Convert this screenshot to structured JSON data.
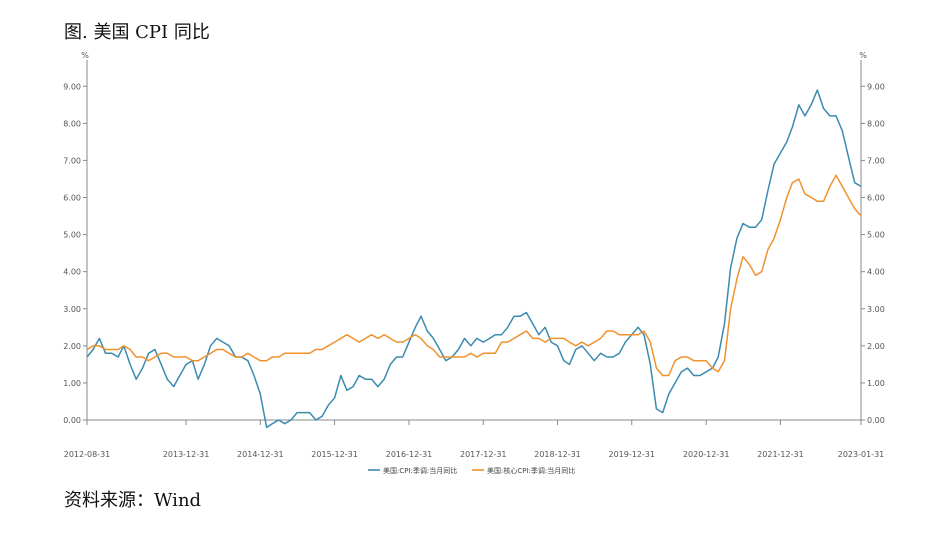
{
  "figure": {
    "title": "图. 美国 CPI 同比",
    "source": "资料来源：Wind"
  },
  "chart_data": {
    "type": "line",
    "title": "图. 美国 CPI 同比",
    "unit_left": "%",
    "unit_right": "%",
    "ylim": [
      0,
      9.6
    ],
    "yticks": [
      "0.00",
      "1.00",
      "2.00",
      "3.00",
      "4.00",
      "5.00",
      "6.00",
      "7.00",
      "8.00",
      "9.00"
    ],
    "ytick_values": [
      0,
      1,
      2,
      3,
      4,
      5,
      6,
      7,
      8,
      9
    ],
    "xlim": [
      "2012-08-31",
      "2023-01-31"
    ],
    "xticks": [
      "2012-08-31",
      "2013-12-31",
      "2014-12-31",
      "2015-12-31",
      "2016-12-31",
      "2017-12-31",
      "2018-12-31",
      "2019-12-31",
      "2020-12-31",
      "2021-12-31",
      "2023-01-31"
    ],
    "grid": false,
    "legend_position": "bottom",
    "series": [
      {
        "name": "美国:CPI:季调:当月同比",
        "color": "#3a8bb0",
        "points": [
          [
            "2012-08-31",
            1.7
          ],
          [
            "2012-09-30",
            1.9
          ],
          [
            "2012-10-31",
            2.2
          ],
          [
            "2012-11-30",
            1.8
          ],
          [
            "2012-12-31",
            1.8
          ],
          [
            "2013-01-31",
            1.7
          ],
          [
            "2013-02-28",
            2.0
          ],
          [
            "2013-03-31",
            1.5
          ],
          [
            "2013-04-30",
            1.1
          ],
          [
            "2013-05-31",
            1.4
          ],
          [
            "2013-06-30",
            1.8
          ],
          [
            "2013-07-31",
            1.9
          ],
          [
            "2013-08-31",
            1.5
          ],
          [
            "2013-09-30",
            1.1
          ],
          [
            "2013-10-31",
            0.9
          ],
          [
            "2013-11-30",
            1.2
          ],
          [
            "2013-12-31",
            1.5
          ],
          [
            "2014-01-31",
            1.6
          ],
          [
            "2014-02-28",
            1.1
          ],
          [
            "2014-03-31",
            1.5
          ],
          [
            "2014-04-30",
            2.0
          ],
          [
            "2014-05-31",
            2.2
          ],
          [
            "2014-06-30",
            2.1
          ],
          [
            "2014-07-31",
            2.0
          ],
          [
            "2014-08-31",
            1.7
          ],
          [
            "2014-09-30",
            1.7
          ],
          [
            "2014-10-31",
            1.6
          ],
          [
            "2014-11-30",
            1.2
          ],
          [
            "2014-12-31",
            0.7
          ],
          [
            "2015-01-31",
            -0.2
          ],
          [
            "2015-02-28",
            -0.1
          ],
          [
            "2015-03-31",
            0.0
          ],
          [
            "2015-04-30",
            -0.1
          ],
          [
            "2015-05-31",
            0.0
          ],
          [
            "2015-06-30",
            0.2
          ],
          [
            "2015-07-31",
            0.2
          ],
          [
            "2015-08-31",
            0.2
          ],
          [
            "2015-09-30",
            0.0
          ],
          [
            "2015-10-31",
            0.1
          ],
          [
            "2015-11-30",
            0.4
          ],
          [
            "2015-12-31",
            0.6
          ],
          [
            "2016-01-31",
            1.2
          ],
          [
            "2016-02-29",
            0.8
          ],
          [
            "2016-03-31",
            0.9
          ],
          [
            "2016-04-30",
            1.2
          ],
          [
            "2016-05-31",
            1.1
          ],
          [
            "2016-06-30",
            1.1
          ],
          [
            "2016-07-31",
            0.9
          ],
          [
            "2016-08-31",
            1.1
          ],
          [
            "2016-09-30",
            1.5
          ],
          [
            "2016-10-31",
            1.7
          ],
          [
            "2016-11-30",
            1.7
          ],
          [
            "2016-12-31",
            2.1
          ],
          [
            "2017-01-31",
            2.5
          ],
          [
            "2017-02-28",
            2.8
          ],
          [
            "2017-03-31",
            2.4
          ],
          [
            "2017-04-30",
            2.2
          ],
          [
            "2017-05-31",
            1.9
          ],
          [
            "2017-06-30",
            1.6
          ],
          [
            "2017-07-31",
            1.7
          ],
          [
            "2017-08-31",
            1.9
          ],
          [
            "2017-09-30",
            2.2
          ],
          [
            "2017-10-31",
            2.0
          ],
          [
            "2017-11-30",
            2.2
          ],
          [
            "2017-12-31",
            2.1
          ],
          [
            "2018-01-31",
            2.2
          ],
          [
            "2018-02-28",
            2.3
          ],
          [
            "2018-03-31",
            2.3
          ],
          [
            "2018-04-30",
            2.5
          ],
          [
            "2018-05-31",
            2.8
          ],
          [
            "2018-06-30",
            2.8
          ],
          [
            "2018-07-31",
            2.9
          ],
          [
            "2018-08-31",
            2.6
          ],
          [
            "2018-09-30",
            2.3
          ],
          [
            "2018-10-31",
            2.5
          ],
          [
            "2018-11-30",
            2.1
          ],
          [
            "2018-12-31",
            2.0
          ],
          [
            "2019-01-31",
            1.6
          ],
          [
            "2019-02-28",
            1.5
          ],
          [
            "2019-03-31",
            1.9
          ],
          [
            "2019-04-30",
            2.0
          ],
          [
            "2019-05-31",
            1.8
          ],
          [
            "2019-06-30",
            1.6
          ],
          [
            "2019-07-31",
            1.8
          ],
          [
            "2019-08-31",
            1.7
          ],
          [
            "2019-09-30",
            1.7
          ],
          [
            "2019-10-31",
            1.8
          ],
          [
            "2019-11-30",
            2.1
          ],
          [
            "2019-12-31",
            2.3
          ],
          [
            "2020-01-31",
            2.5
          ],
          [
            "2020-02-29",
            2.3
          ],
          [
            "2020-03-31",
            1.5
          ],
          [
            "2020-04-30",
            0.3
          ],
          [
            "2020-05-31",
            0.2
          ],
          [
            "2020-06-30",
            0.7
          ],
          [
            "2020-07-31",
            1.0
          ],
          [
            "2020-08-31",
            1.3
          ],
          [
            "2020-09-30",
            1.4
          ],
          [
            "2020-10-31",
            1.2
          ],
          [
            "2020-11-30",
            1.2
          ],
          [
            "2020-12-31",
            1.3
          ],
          [
            "2021-01-31",
            1.4
          ],
          [
            "2021-02-28",
            1.7
          ],
          [
            "2021-03-31",
            2.6
          ],
          [
            "2021-04-30",
            4.1
          ],
          [
            "2021-05-31",
            4.9
          ],
          [
            "2021-06-30",
            5.3
          ],
          [
            "2021-07-31",
            5.2
          ],
          [
            "2021-08-31",
            5.2
          ],
          [
            "2021-09-30",
            5.4
          ],
          [
            "2021-10-31",
            6.2
          ],
          [
            "2021-11-30",
            6.9
          ],
          [
            "2021-12-31",
            7.2
          ],
          [
            "2022-01-31",
            7.5
          ],
          [
            "2022-02-28",
            7.9
          ],
          [
            "2022-03-31",
            8.5
          ],
          [
            "2022-04-30",
            8.2
          ],
          [
            "2022-05-31",
            8.5
          ],
          [
            "2022-06-30",
            8.9
          ],
          [
            "2022-07-31",
            8.4
          ],
          [
            "2022-08-31",
            8.2
          ],
          [
            "2022-09-30",
            8.2
          ],
          [
            "2022-10-31",
            7.8
          ],
          [
            "2022-11-30",
            7.1
          ],
          [
            "2022-12-31",
            6.4
          ],
          [
            "2023-01-31",
            6.3
          ]
        ]
      },
      {
        "name": "美国:核心CPI:季调:当月同比",
        "color": "#f0922e",
        "points": [
          [
            "2012-08-31",
            1.9
          ],
          [
            "2012-09-30",
            2.0
          ],
          [
            "2012-10-31",
            2.0
          ],
          [
            "2012-11-30",
            1.9
          ],
          [
            "2012-12-31",
            1.9
          ],
          [
            "2013-01-31",
            1.9
          ],
          [
            "2013-02-28",
            2.0
          ],
          [
            "2013-03-31",
            1.9
          ],
          [
            "2013-04-30",
            1.7
          ],
          [
            "2013-05-31",
            1.7
          ],
          [
            "2013-06-30",
            1.6
          ],
          [
            "2013-07-31",
            1.7
          ],
          [
            "2013-08-31",
            1.8
          ],
          [
            "2013-09-30",
            1.8
          ],
          [
            "2013-10-31",
            1.7
          ],
          [
            "2013-11-30",
            1.7
          ],
          [
            "2013-12-31",
            1.7
          ],
          [
            "2014-01-31",
            1.6
          ],
          [
            "2014-02-28",
            1.6
          ],
          [
            "2014-03-31",
            1.7
          ],
          [
            "2014-04-30",
            1.8
          ],
          [
            "2014-05-31",
            1.9
          ],
          [
            "2014-06-30",
            1.9
          ],
          [
            "2014-07-31",
            1.8
          ],
          [
            "2014-08-31",
            1.7
          ],
          [
            "2014-09-30",
            1.7
          ],
          [
            "2014-10-31",
            1.8
          ],
          [
            "2014-11-30",
            1.7
          ],
          [
            "2014-12-31",
            1.6
          ],
          [
            "2015-01-31",
            1.6
          ],
          [
            "2015-02-28",
            1.7
          ],
          [
            "2015-03-31",
            1.7
          ],
          [
            "2015-04-30",
            1.8
          ],
          [
            "2015-05-31",
            1.8
          ],
          [
            "2015-06-30",
            1.8
          ],
          [
            "2015-07-31",
            1.8
          ],
          [
            "2015-08-31",
            1.8
          ],
          [
            "2015-09-30",
            1.9
          ],
          [
            "2015-10-31",
            1.9
          ],
          [
            "2015-11-30",
            2.0
          ],
          [
            "2015-12-31",
            2.1
          ],
          [
            "2016-01-31",
            2.2
          ],
          [
            "2016-02-29",
            2.3
          ],
          [
            "2016-03-31",
            2.2
          ],
          [
            "2016-04-30",
            2.1
          ],
          [
            "2016-05-31",
            2.2
          ],
          [
            "2016-06-30",
            2.3
          ],
          [
            "2016-07-31",
            2.2
          ],
          [
            "2016-08-31",
            2.3
          ],
          [
            "2016-09-30",
            2.2
          ],
          [
            "2016-10-31",
            2.1
          ],
          [
            "2016-11-30",
            2.1
          ],
          [
            "2016-12-31",
            2.2
          ],
          [
            "2017-01-31",
            2.3
          ],
          [
            "2017-02-28",
            2.2
          ],
          [
            "2017-03-31",
            2.0
          ],
          [
            "2017-04-30",
            1.9
          ],
          [
            "2017-05-31",
            1.7
          ],
          [
            "2017-06-30",
            1.7
          ],
          [
            "2017-07-31",
            1.7
          ],
          [
            "2017-08-31",
            1.7
          ],
          [
            "2017-09-30",
            1.7
          ],
          [
            "2017-10-31",
            1.8
          ],
          [
            "2017-11-30",
            1.7
          ],
          [
            "2017-12-31",
            1.8
          ],
          [
            "2018-01-31",
            1.8
          ],
          [
            "2018-02-28",
            1.8
          ],
          [
            "2018-03-31",
            2.1
          ],
          [
            "2018-04-30",
            2.1
          ],
          [
            "2018-05-31",
            2.2
          ],
          [
            "2018-06-30",
            2.3
          ],
          [
            "2018-07-31",
            2.4
          ],
          [
            "2018-08-31",
            2.2
          ],
          [
            "2018-09-30",
            2.2
          ],
          [
            "2018-10-31",
            2.1
          ],
          [
            "2018-11-30",
            2.2
          ],
          [
            "2018-12-31",
            2.2
          ],
          [
            "2019-01-31",
            2.2
          ],
          [
            "2019-02-28",
            2.1
          ],
          [
            "2019-03-31",
            2.0
          ],
          [
            "2019-04-30",
            2.1
          ],
          [
            "2019-05-31",
            2.0
          ],
          [
            "2019-06-30",
            2.1
          ],
          [
            "2019-07-31",
            2.2
          ],
          [
            "2019-08-31",
            2.4
          ],
          [
            "2019-09-30",
            2.4
          ],
          [
            "2019-10-31",
            2.3
          ],
          [
            "2019-11-30",
            2.3
          ],
          [
            "2019-12-31",
            2.3
          ],
          [
            "2020-01-31",
            2.3
          ],
          [
            "2020-02-29",
            2.4
          ],
          [
            "2020-03-31",
            2.1
          ],
          [
            "2020-04-30",
            1.4
          ],
          [
            "2020-05-31",
            1.2
          ],
          [
            "2020-06-30",
            1.2
          ],
          [
            "2020-07-31",
            1.6
          ],
          [
            "2020-08-31",
            1.7
          ],
          [
            "2020-09-30",
            1.7
          ],
          [
            "2020-10-31",
            1.6
          ],
          [
            "2020-11-30",
            1.6
          ],
          [
            "2020-12-31",
            1.6
          ],
          [
            "2021-01-31",
            1.4
          ],
          [
            "2021-02-28",
            1.3
          ],
          [
            "2021-03-31",
            1.6
          ],
          [
            "2021-04-30",
            3.0
          ],
          [
            "2021-05-31",
            3.8
          ],
          [
            "2021-06-30",
            4.4
          ],
          [
            "2021-07-31",
            4.2
          ],
          [
            "2021-08-31",
            3.9
          ],
          [
            "2021-09-30",
            4.0
          ],
          [
            "2021-10-31",
            4.6
          ],
          [
            "2021-11-30",
            4.9
          ],
          [
            "2021-12-31",
            5.4
          ],
          [
            "2022-01-31",
            6.0
          ],
          [
            "2022-02-28",
            6.4
          ],
          [
            "2022-03-31",
            6.5
          ],
          [
            "2022-04-30",
            6.1
          ],
          [
            "2022-05-31",
            6.0
          ],
          [
            "2022-06-30",
            5.9
          ],
          [
            "2022-07-31",
            5.9
          ],
          [
            "2022-08-31",
            6.3
          ],
          [
            "2022-09-30",
            6.6
          ],
          [
            "2022-10-31",
            6.3
          ],
          [
            "2022-11-30",
            6.0
          ],
          [
            "2022-12-31",
            5.7
          ],
          [
            "2023-01-31",
            5.5
          ]
        ]
      }
    ]
  }
}
